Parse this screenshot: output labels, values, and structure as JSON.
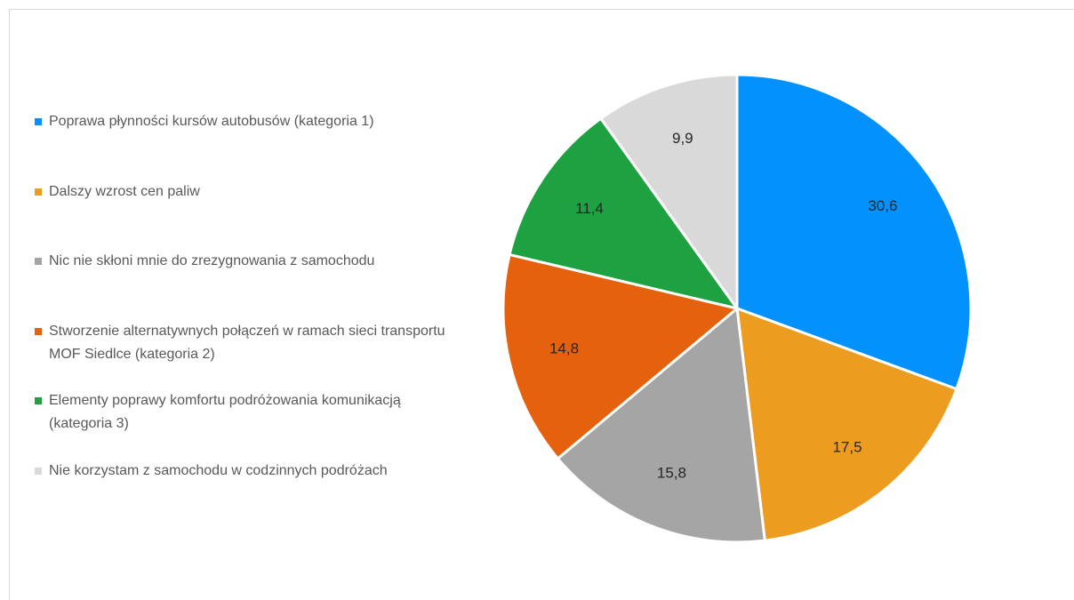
{
  "chart_data": {
    "type": "pie",
    "categories": [
      "Poprawa płynności kursów autobusów (kategoria 1)",
      "Dalszy wzrost cen paliw",
      "Nic nie skłoni mnie do zrezygnowania z samochodu",
      "Stworzenie alternatywnych połączeń w ramach sieci transportu MOF Siedlce (kategoria 2)",
      "Elementy poprawy komfortu podróżowania komunikacją (kategoria 3)",
      "Nie korzystam z samochodu w codzinnych podróżach"
    ],
    "values": [
      30.6,
      17.5,
      15.8,
      14.8,
      11.4,
      9.9
    ],
    "value_labels": [
      "30,6",
      "17,5",
      "15,8",
      "14,8",
      "11,4",
      "9,9"
    ],
    "colors": [
      "#0391fd",
      "#ec9c1f",
      "#a5a5a5",
      "#e5610d",
      "#1ea140",
      "#d9d9d9"
    ],
    "legend": "left"
  }
}
